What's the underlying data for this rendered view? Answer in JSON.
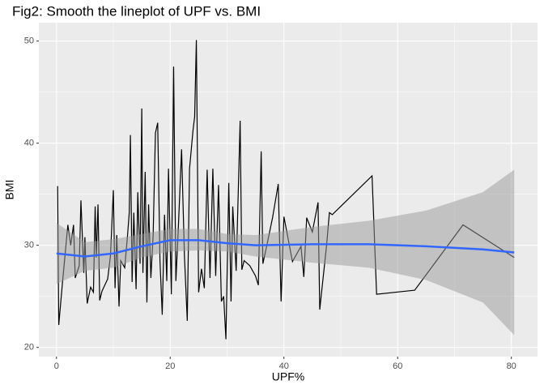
{
  "chart_data": {
    "type": "line",
    "title": "Fig2: Smooth the lineplot of UPF vs. BMI",
    "x_label": "UPF%",
    "y_label": "BMI",
    "xlim": [
      -3.1,
      84.6
    ],
    "ylim": [
      19.1,
      51.8
    ],
    "xticks": [
      0,
      20,
      40,
      60,
      80
    ],
    "yticks": [
      20,
      30,
      40,
      50
    ],
    "grid": true,
    "line": {
      "color": "#000000",
      "x": [
        0.2,
        0.4,
        1,
        2,
        2.5,
        3,
        3.3,
        4,
        4.3,
        4.8,
        5,
        5.4,
        6,
        6.5,
        6.8,
        7,
        7.3,
        7.6,
        8,
        9,
        9.5,
        10,
        10.3,
        10.6,
        11,
        11.3,
        12,
        12.5,
        12.8,
        13,
        13.3,
        13.6,
        14,
        14.3,
        14.7,
        15,
        15.2,
        15.6,
        15.9,
        16.2,
        16.6,
        17,
        17.4,
        17.8,
        18.2,
        18.6,
        19,
        19.4,
        19.7,
        20.2,
        20.6,
        21,
        21.4,
        22,
        22.5,
        23,
        23.4,
        24,
        24.3,
        24.6,
        25,
        25.5,
        26,
        26.5,
        27,
        27.5,
        28,
        28.5,
        29,
        29.4,
        29.8,
        30.3,
        30.7,
        31,
        31.6,
        32.3,
        32.6,
        33,
        34,
        35,
        35.5,
        36,
        36.3,
        37,
        38,
        39,
        39.5,
        40,
        41.5,
        43,
        43.5,
        44,
        45,
        46,
        46.3,
        47.5,
        48,
        48.5,
        55.5,
        56.3,
        63,
        71.5,
        80.5
      ],
      "values": [
        35.8,
        22.2,
        26,
        32,
        30,
        32,
        26.8,
        28,
        34.4,
        27.3,
        30.8,
        24.3,
        25.9,
        25.4,
        33.8,
        28.8,
        34,
        24.6,
        25.5,
        26.7,
        29,
        35.4,
        25.8,
        31,
        24,
        28.5,
        27.8,
        31,
        33.2,
        40.8,
        26.4,
        33.2,
        25.7,
        35.2,
        28.2,
        43.4,
        27.3,
        37.2,
        24.4,
        34,
        26.8,
        31,
        41,
        42,
        28.5,
        23.2,
        33,
        26.5,
        37.5,
        25.2,
        47.5,
        26.5,
        31.3,
        39.4,
        29,
        22.6,
        37.5,
        41.2,
        42.6,
        50.1,
        25.4,
        27.7,
        25.8,
        37.4,
        26.8,
        37.5,
        27,
        35.9,
        24.5,
        25,
        20.8,
        36.1,
        24.5,
        33.8,
        27.5,
        42.2,
        27.6,
        28.5,
        28,
        27,
        26.1,
        39.2,
        28.2,
        30,
        32.7,
        36,
        24.5,
        32.8,
        28.4,
        29.9,
        26.9,
        32.7,
        31.3,
        34.2,
        23.7,
        30,
        33.2,
        33,
        36.8,
        25.2,
        25.6,
        32,
        28.8
      ]
    },
    "smooth": {
      "color": "#3366ff",
      "band_color": "#999999",
      "x": [
        0,
        5,
        10,
        15,
        20,
        25,
        30,
        35,
        45,
        55,
        65,
        75,
        80.5
      ],
      "values": [
        29.2,
        28.9,
        29.2,
        29.9,
        30.5,
        30.5,
        30.2,
        30.0,
        30.1,
        30.1,
        29.9,
        29.6,
        29.3
      ],
      "lower": [
        26.2,
        27.5,
        27.8,
        28.8,
        29.4,
        29.5,
        29.4,
        28.9,
        28.3,
        27.8,
        26.6,
        24.4,
        21.2
      ],
      "upper": [
        32.2,
        30.3,
        30.6,
        31.1,
        31.6,
        31.6,
        31.1,
        31.0,
        31.8,
        32.4,
        33.4,
        35.2,
        37.4
      ]
    }
  }
}
